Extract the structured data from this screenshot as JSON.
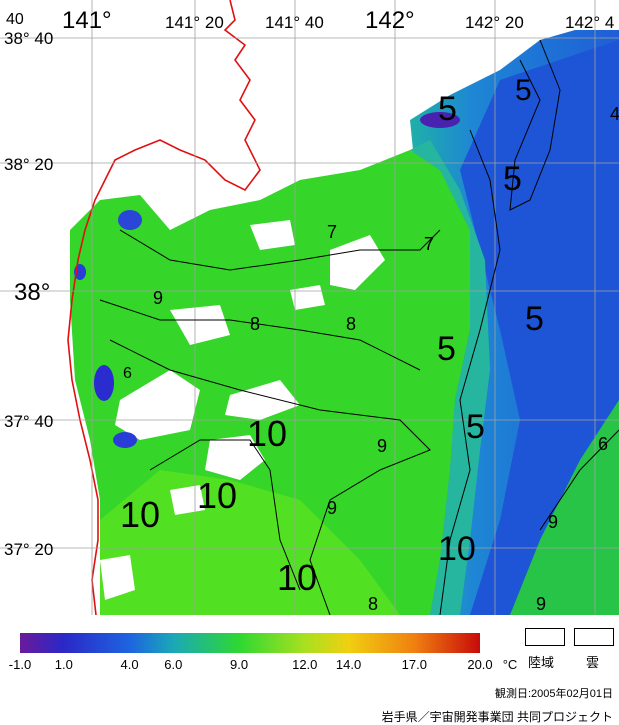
{
  "map": {
    "lon_labels": [
      "141°",
      "141° 20",
      "141° 40",
      "142°",
      "142° 20",
      "142° 4"
    ],
    "lat_labels": [
      "38° 40",
      "38° 20",
      "38°",
      "37° 40",
      "37° 20"
    ],
    "corner_label": "40",
    "contour_labels": [
      "5",
      "5",
      "5",
      "5",
      "5",
      "5",
      "4",
      "6",
      "6",
      "7",
      "7",
      "8",
      "8",
      "9",
      "9",
      "9",
      "9",
      "9",
      "10",
      "10",
      "10",
      "10",
      "10",
      "8"
    ]
  },
  "colorbar": {
    "ticks": [
      "-1.0",
      "1.0",
      "4.0",
      "6.0",
      "9.0",
      "12.0",
      "14.0",
      "17.0",
      "20.0"
    ],
    "tick_values": [
      -1,
      1,
      4,
      6,
      9,
      12,
      14,
      17,
      20
    ],
    "unit": "°C",
    "colors": [
      "#6a1a9a",
      "#2a28c8",
      "#1e64e0",
      "#1aa8b8",
      "#2ed832",
      "#a8e020",
      "#f0d010",
      "#f08010",
      "#c80a0a"
    ]
  },
  "legend": {
    "land_label": "陸域",
    "cloud_label": "雲"
  },
  "obs_date": "観測日:2005年02月01日",
  "credit": "岩手県／宇宙開発事業団 共同プロジェクト"
}
